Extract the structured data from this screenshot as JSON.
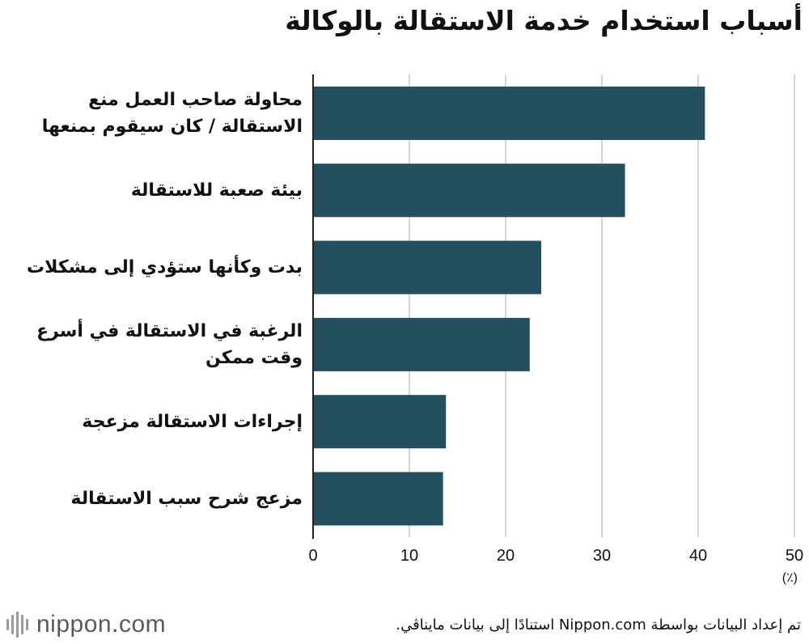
{
  "title": "أسباب استخدام خدمة الاستقالة بالوكالة",
  "chart_data": {
    "type": "bar",
    "orientation": "horizontal",
    "categories": [
      [
        "محاولة صاحب العمل منع",
        "الاستقالة / كان سيقوم بمنعها"
      ],
      [
        "بيئة صعبة للاستقالة"
      ],
      [
        "بدت وكأنها ستؤدي إلى مشكلات"
      ],
      [
        "الرغبة في الاستقالة في أسرع",
        "وقت ممكن"
      ],
      [
        "إجراءات الاستقالة مزعجة"
      ],
      [
        "مزعج شرح سبب الاستقالة"
      ]
    ],
    "values": [
      40.7,
      32.4,
      23.7,
      22.5,
      13.8,
      13.5
    ],
    "xlim": [
      0,
      50
    ],
    "xticks": [
      "0",
      "10",
      "20",
      "30",
      "40",
      "50"
    ],
    "unit": "(٪)",
    "bar_color": "#234f5f",
    "grid": true
  },
  "footer": {
    "logo_text": "nippon",
    "logo_dot": ".",
    "logo_suffix": "com",
    "source": "تم إعداد البيانات بواسطة Nippon.com استنادًا إلى بيانات مايناڤي."
  }
}
